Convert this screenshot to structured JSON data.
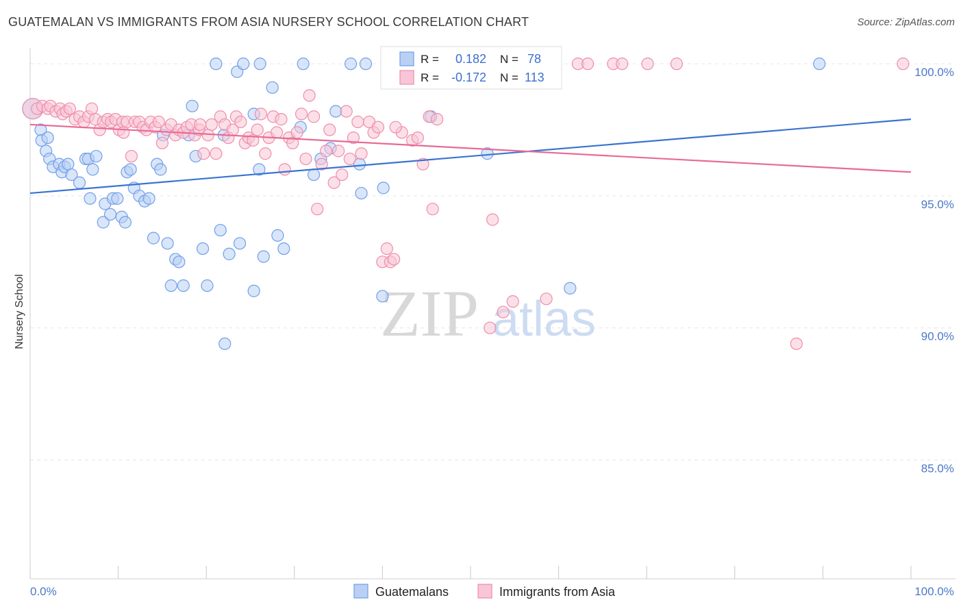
{
  "title": "GUATEMALAN VS IMMIGRANTS FROM ASIA NURSERY SCHOOL CORRELATION CHART",
  "source": "Source: ZipAtlas.com",
  "watermark": {
    "zip": "ZIP",
    "atlas": "atlas"
  },
  "chart_data": {
    "type": "scatter",
    "title": "GUATEMALAN VS IMMIGRANTS FROM ASIA NURSERY SCHOOL CORRELATION CHART",
    "xlabel": "",
    "ylabel": "Nursery School",
    "xlim": [
      0,
      100
    ],
    "ylim": [
      80.5,
      100.6
    ],
    "x_tick_labels": [
      "0.0%",
      "100.0%"
    ],
    "y_ticks": [
      {
        "value": 100,
        "label": "100.0%"
      },
      {
        "value": 95,
        "label": "95.0%"
      },
      {
        "value": 90,
        "label": "90.0%"
      },
      {
        "value": 85,
        "label": "85.0%"
      }
    ],
    "legend": {
      "r_label": "R =",
      "n_label": "N =",
      "entries": [
        {
          "name": "Guatemalans",
          "r": "0.182",
          "n": "78",
          "color": "#6fa0e8",
          "fill": "#b9d0f4",
          "line": "#3a73d1"
        },
        {
          "name": "Immigrants from Asia",
          "r": "-0.172",
          "n": "113",
          "color": "#f08cab",
          "fill": "#f8c6d6",
          "line": "#e86a95"
        }
      ]
    },
    "series": [
      {
        "name": "Guatemalans",
        "trend": {
          "x0": 0,
          "y0": 95.1,
          "x1": 100,
          "y1": 97.9
        },
        "points": [
          [
            0.3,
            98.3
          ],
          [
            1.2,
            97.5
          ],
          [
            1.3,
            97.1
          ],
          [
            1.8,
            96.7
          ],
          [
            2.2,
            96.4
          ],
          [
            2.6,
            96.1
          ],
          [
            3.3,
            96.2
          ],
          [
            3.6,
            95.9
          ],
          [
            3.9,
            96.1
          ],
          [
            4.3,
            96.2
          ],
          [
            4.7,
            95.8
          ],
          [
            5.6,
            95.5
          ],
          [
            6.3,
            96.4
          ],
          [
            6.6,
            96.4
          ],
          [
            7.1,
            96.0
          ],
          [
            7.5,
            96.5
          ],
          [
            6.8,
            94.9
          ],
          [
            8.3,
            94.0
          ],
          [
            8.5,
            94.7
          ],
          [
            9.1,
            94.3
          ],
          [
            9.4,
            94.9
          ],
          [
            9.9,
            94.9
          ],
          [
            10.4,
            94.2
          ],
          [
            10.8,
            94.0
          ],
          [
            11.0,
            95.9
          ],
          [
            11.4,
            96.0
          ],
          [
            11.8,
            95.3
          ],
          [
            12.4,
            95.0
          ],
          [
            13.0,
            94.8
          ],
          [
            13.5,
            94.9
          ],
          [
            14.0,
            93.4
          ],
          [
            14.4,
            96.2
          ],
          [
            14.8,
            96.0
          ],
          [
            15.6,
            93.2
          ],
          [
            16.0,
            91.6
          ],
          [
            16.5,
            92.6
          ],
          [
            16.9,
            92.5
          ],
          [
            17.4,
            91.6
          ],
          [
            18.4,
            98.4
          ],
          [
            18.8,
            96.5
          ],
          [
            19.6,
            93.0
          ],
          [
            20.1,
            91.6
          ],
          [
            21.1,
            100.0
          ],
          [
            21.6,
            93.7
          ],
          [
            22.1,
            89.4
          ],
          [
            22.6,
            92.8
          ],
          [
            23.5,
            99.7
          ],
          [
            23.8,
            93.2
          ],
          [
            24.2,
            100.0
          ],
          [
            25.4,
            98.1
          ],
          [
            25.4,
            91.4
          ],
          [
            26.0,
            96.0
          ],
          [
            26.1,
            100.0
          ],
          [
            26.5,
            92.7
          ],
          [
            27.5,
            99.1
          ],
          [
            28.1,
            93.5
          ],
          [
            28.8,
            93.0
          ],
          [
            30.7,
            97.6
          ],
          [
            31.0,
            100.0
          ],
          [
            32.2,
            95.8
          ],
          [
            33.0,
            96.4
          ],
          [
            34.1,
            96.8
          ],
          [
            34.7,
            98.2
          ],
          [
            36.4,
            100.0
          ],
          [
            37.4,
            96.2
          ],
          [
            37.6,
            95.1
          ],
          [
            38.1,
            100.0
          ],
          [
            40.1,
            95.3
          ],
          [
            40.0,
            91.2
          ],
          [
            45.5,
            98.0
          ],
          [
            49.1,
            100.0
          ],
          [
            51.9,
            96.6
          ],
          [
            53.4,
            100.0
          ],
          [
            55.1,
            100.0
          ],
          [
            56.8,
            100.0
          ],
          [
            61.3,
            91.5
          ],
          [
            89.6,
            100.0
          ],
          [
            2.0,
            97.2
          ],
          [
            15.1,
            97.3
          ],
          [
            18.0,
            97.3
          ],
          [
            22.0,
            97.3
          ]
        ]
      },
      {
        "name": "Immigrants from Asia",
        "trend": {
          "x0": 0,
          "y0": 97.7,
          "x1": 100,
          "y1": 95.9
        },
        "points": [
          [
            0.3,
            98.3
          ],
          [
            0.8,
            98.3
          ],
          [
            1.4,
            98.4
          ],
          [
            2.0,
            98.3
          ],
          [
            2.3,
            98.4
          ],
          [
            2.9,
            98.2
          ],
          [
            3.4,
            98.3
          ],
          [
            3.7,
            98.1
          ],
          [
            4.1,
            98.2
          ],
          [
            4.5,
            98.3
          ],
          [
            5.1,
            97.9
          ],
          [
            5.6,
            98.0
          ],
          [
            6.1,
            97.8
          ],
          [
            6.6,
            98.0
          ],
          [
            7.0,
            98.3
          ],
          [
            7.4,
            97.9
          ],
          [
            7.9,
            97.5
          ],
          [
            8.3,
            97.8
          ],
          [
            8.8,
            97.9
          ],
          [
            9.2,
            97.8
          ],
          [
            9.7,
            97.9
          ],
          [
            10.1,
            97.5
          ],
          [
            10.5,
            97.8
          ],
          [
            11.0,
            97.8
          ],
          [
            11.5,
            96.5
          ],
          [
            11.9,
            97.8
          ],
          [
            12.4,
            97.8
          ],
          [
            12.8,
            97.6
          ],
          [
            13.2,
            97.5
          ],
          [
            13.7,
            97.8
          ],
          [
            14.2,
            97.6
          ],
          [
            14.6,
            97.8
          ],
          [
            15.0,
            97.0
          ],
          [
            15.5,
            97.5
          ],
          [
            16.0,
            97.7
          ],
          [
            16.5,
            97.3
          ],
          [
            16.9,
            97.5
          ],
          [
            17.4,
            97.4
          ],
          [
            17.8,
            97.6
          ],
          [
            18.3,
            97.7
          ],
          [
            18.7,
            97.3
          ],
          [
            19.2,
            97.5
          ],
          [
            19.7,
            96.6
          ],
          [
            20.2,
            97.3
          ],
          [
            20.6,
            97.7
          ],
          [
            21.1,
            96.6
          ],
          [
            21.6,
            98.0
          ],
          [
            22.1,
            97.7
          ],
          [
            22.5,
            97.2
          ],
          [
            23.0,
            97.5
          ],
          [
            23.4,
            98.0
          ],
          [
            23.9,
            97.8
          ],
          [
            24.4,
            97.0
          ],
          [
            24.8,
            97.2
          ],
          [
            25.3,
            97.1
          ],
          [
            25.8,
            97.5
          ],
          [
            26.2,
            98.1
          ],
          [
            26.7,
            96.6
          ],
          [
            27.1,
            97.2
          ],
          [
            27.6,
            98.0
          ],
          [
            28.0,
            97.4
          ],
          [
            28.5,
            97.9
          ],
          [
            28.9,
            96.0
          ],
          [
            29.4,
            97.2
          ],
          [
            29.8,
            97.0
          ],
          [
            30.3,
            97.4
          ],
          [
            30.8,
            98.1
          ],
          [
            31.3,
            96.4
          ],
          [
            31.7,
            98.8
          ],
          [
            32.2,
            98.0
          ],
          [
            32.6,
            94.5
          ],
          [
            33.1,
            96.2
          ],
          [
            33.6,
            96.7
          ],
          [
            34.0,
            97.5
          ],
          [
            34.5,
            95.5
          ],
          [
            35.0,
            96.7
          ],
          [
            35.4,
            95.8
          ],
          [
            35.9,
            98.2
          ],
          [
            36.3,
            96.4
          ],
          [
            36.7,
            97.2
          ],
          [
            37.2,
            97.8
          ],
          [
            37.6,
            96.6
          ],
          [
            38.5,
            97.8
          ],
          [
            39.0,
            97.4
          ],
          [
            39.5,
            97.6
          ],
          [
            40.0,
            92.5
          ],
          [
            40.5,
            93.0
          ],
          [
            40.9,
            92.5
          ],
          [
            41.3,
            92.6
          ],
          [
            42.2,
            97.4
          ],
          [
            43.4,
            97.1
          ],
          [
            44.6,
            96.2
          ],
          [
            45.3,
            98.0
          ],
          [
            45.7,
            94.5
          ],
          [
            46.2,
            97.9
          ],
          [
            47.4,
            100.0
          ],
          [
            48.8,
            100.0
          ],
          [
            52.5,
            94.1
          ],
          [
            53.7,
            90.6
          ],
          [
            54.8,
            91.0
          ],
          [
            58.6,
            91.1
          ],
          [
            62.2,
            100.0
          ],
          [
            63.3,
            100.0
          ],
          [
            66.2,
            100.0
          ],
          [
            67.2,
            100.0
          ],
          [
            70.1,
            100.0
          ],
          [
            73.4,
            100.0
          ],
          [
            87.0,
            89.4
          ],
          [
            99.1,
            100.0
          ],
          [
            41.5,
            97.6
          ],
          [
            10.6,
            97.4
          ],
          [
            44.0,
            97.2
          ],
          [
            52.2,
            90.0
          ],
          [
            19.3,
            97.7
          ]
        ]
      }
    ]
  },
  "bottom_legend": [
    "Guatemalans",
    "Immigrants from Asia"
  ]
}
